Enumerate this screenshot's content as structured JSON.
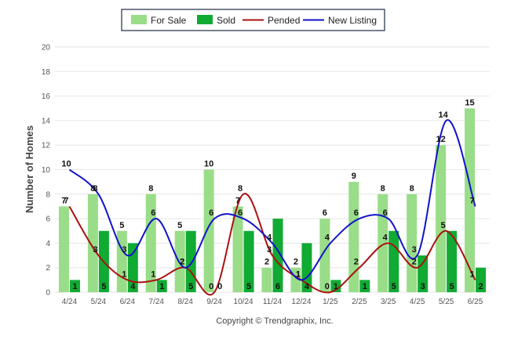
{
  "chart_data": {
    "type": "bar",
    "categories": [
      "4/24",
      "5/24",
      "6/24",
      "7/24",
      "8/24",
      "9/24",
      "10/24",
      "11/24",
      "12/24",
      "1/25",
      "2/25",
      "3/25",
      "4/25",
      "5/25",
      "6/25"
    ],
    "ylabel": "Number of Homes",
    "ylim": [
      0,
      20
    ],
    "yticks": [
      0,
      2,
      4,
      6,
      8,
      10,
      12,
      14,
      16,
      18,
      20
    ],
    "grid": true,
    "legend_position": "top-center",
    "series": [
      {
        "name": "For Sale",
        "kind": "bar",
        "color": "#99dd88",
        "values": [
          7,
          8,
          5,
          8,
          5,
          10,
          7,
          2,
          2,
          6,
          9,
          8,
          8,
          12,
          15
        ]
      },
      {
        "name": "Sold",
        "kind": "bar",
        "color": "#11aa33",
        "values": [
          1,
          5,
          4,
          1,
          5,
          0,
          5,
          6,
          4,
          1,
          1,
          5,
          3,
          5,
          2
        ]
      },
      {
        "name": "Pended",
        "kind": "line",
        "color": "#aa1111",
        "values": [
          7,
          3,
          1,
          1,
          2,
          0,
          8,
          3,
          1,
          0,
          2,
          4,
          2,
          5,
          1
        ]
      },
      {
        "name": "New Listing",
        "kind": "line",
        "color": "#1111cc",
        "values": [
          10,
          8,
          3,
          6,
          2,
          6,
          6,
          4,
          1,
          4,
          6,
          6,
          3,
          14,
          7
        ]
      }
    ]
  },
  "footer": {
    "copyright": "Copyright © Trendgraphix, Inc."
  }
}
